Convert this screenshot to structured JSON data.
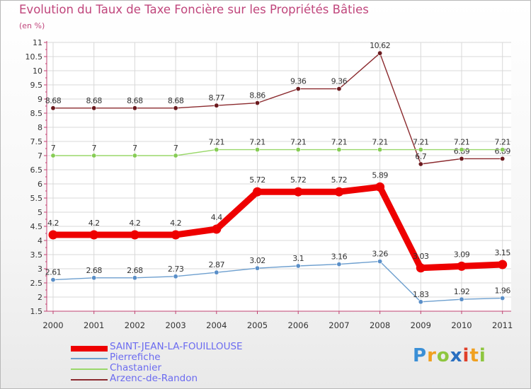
{
  "chart_data": {
    "type": "line",
    "title": "Evolution du Taux de Taxe Foncière sur les Propriétés Bâties",
    "ylabel": "(en %)",
    "xlabel": "",
    "ylim": [
      1.5,
      11
    ],
    "y_ticks": [
      "1.5",
      "2",
      "2.5",
      "3",
      "3.5",
      "4",
      "4.5",
      "5",
      "5.5",
      "6",
      "6.5",
      "7",
      "7.5",
      "8",
      "8.5",
      "9",
      "9.5",
      "10",
      "10.5",
      "11"
    ],
    "categories": [
      "2000",
      "2001",
      "2002",
      "2003",
      "2004",
      "2005",
      "2006",
      "2007",
      "2008",
      "2009",
      "2010",
      "2011"
    ],
    "grid": true,
    "series": [
      {
        "name": "Arzenc-de-Randon",
        "color": "#8b2a2e",
        "marker": "#6b1a1e",
        "values": [
          8.68,
          8.68,
          8.68,
          8.68,
          8.77,
          8.86,
          9.36,
          9.36,
          10.62,
          6.7,
          6.89,
          6.89
        ],
        "labels": [
          "8.68",
          "8.68",
          "8.68",
          "8.68",
          "8.77",
          "8.86",
          "9.36",
          "9.36",
          "10.62",
          "6.7",
          "6.89",
          "6.89"
        ]
      },
      {
        "name": "Chastanier",
        "color": "#9ad86a",
        "marker": "#86cc55",
        "values": [
          7,
          7,
          7,
          7,
          7.21,
          7.21,
          7.21,
          7.21,
          7.21,
          7.21,
          7.21,
          7.21
        ],
        "labels": [
          "7",
          "7",
          "7",
          "7",
          "7.21",
          "7.21",
          "7.21",
          "7.21",
          "7.21",
          "7.21",
          "7.21",
          "7.21"
        ]
      },
      {
        "name": "SAINT-JEAN-LA-FOUILLOUSE",
        "color": "#ee0000",
        "marker": "#ee0000",
        "values": [
          4.2,
          4.2,
          4.2,
          4.2,
          4.4,
          5.72,
          5.72,
          5.72,
          5.89,
          3.03,
          3.09,
          3.15
        ],
        "labels": [
          "4.2",
          "4.2",
          "4.2",
          "4.2",
          "4.4",
          "5.72",
          "5.72",
          "5.72",
          "5.89",
          "3.03",
          "3.09",
          "3.15"
        ]
      },
      {
        "name": "Pierrefiche",
        "color": "#6d9fcf",
        "marker": "#5a8fc8",
        "values": [
          2.61,
          2.68,
          2.68,
          2.73,
          2.87,
          3.02,
          3.1,
          3.16,
          3.26,
          1.83,
          1.92,
          1.96
        ],
        "labels": [
          "2.61",
          "2.68",
          "2.68",
          "2.73",
          "2.87",
          "3.02",
          "3.1",
          "3.16",
          "3.26",
          "1.83",
          "1.92",
          "1.96"
        ]
      }
    ]
  },
  "legend": [
    {
      "label": "SAINT-JEAN-LA-FOUILLOUSE",
      "color": "#ee0000"
    },
    {
      "label": "Pierrefiche",
      "color": "#6d9fcf"
    },
    {
      "label": "Chastanier",
      "color": "#9ad86a"
    },
    {
      "label": "Arzenc-de-Randon",
      "color": "#8b2a2e"
    }
  ],
  "logo": {
    "letters": [
      "P",
      "r",
      "o",
      "x",
      "i",
      "t",
      "i"
    ],
    "colors": [
      "#3a8fd6",
      "#f0a020",
      "#8ec63f",
      "#2a6fc0",
      "#e0402a",
      "#f0a020",
      "#8ec63f"
    ]
  }
}
